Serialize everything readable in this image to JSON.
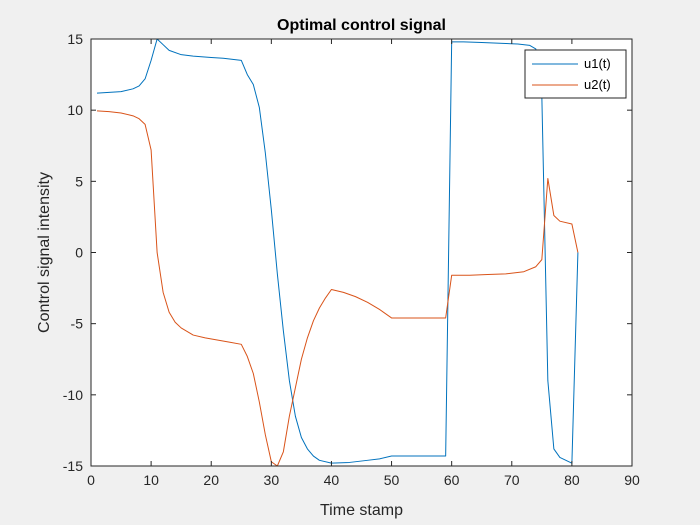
{
  "chart_data": {
    "type": "line",
    "title": "Optimal control signal",
    "xlabel": "Time stamp",
    "ylabel": "Control signal intensity",
    "xlim": [
      0,
      90
    ],
    "ylim": [
      -15,
      15
    ],
    "xticks": [
      0,
      10,
      20,
      30,
      40,
      50,
      60,
      70,
      80,
      90
    ],
    "yticks": [
      -15,
      -10,
      -5,
      0,
      5,
      10,
      15
    ],
    "grid": false,
    "legend_position": "top-right",
    "colors": {
      "u1": "#0072BD",
      "u2": "#D95319"
    },
    "series": [
      {
        "name": "u1(t)",
        "color": "#0072BD",
        "points": [
          [
            1,
            11.2
          ],
          [
            3,
            11.25
          ],
          [
            5,
            11.3
          ],
          [
            7,
            11.5
          ],
          [
            8,
            11.7
          ],
          [
            9,
            12.2
          ],
          [
            10,
            13.5
          ],
          [
            11,
            15.0
          ],
          [
            12,
            14.6
          ],
          [
            13,
            14.2
          ],
          [
            15,
            13.9
          ],
          [
            17,
            13.8
          ],
          [
            20,
            13.7
          ],
          [
            22,
            13.65
          ],
          [
            25,
            13.5
          ],
          [
            26,
            12.5
          ],
          [
            27,
            11.8
          ],
          [
            28,
            10.2
          ],
          [
            29,
            7.0
          ],
          [
            30,
            3.0
          ],
          [
            31,
            -1.5
          ],
          [
            32,
            -5.5
          ],
          [
            33,
            -9.0
          ],
          [
            34,
            -11.5
          ],
          [
            35,
            -13.0
          ],
          [
            36,
            -13.8
          ],
          [
            37,
            -14.3
          ],
          [
            38,
            -14.6
          ],
          [
            40,
            -14.8
          ],
          [
            43,
            -14.75
          ],
          [
            46,
            -14.6
          ],
          [
            48,
            -14.5
          ],
          [
            50,
            -14.3
          ],
          [
            53,
            -14.3
          ],
          [
            56,
            -14.3
          ],
          [
            59,
            -14.3
          ],
          [
            60,
            14.8
          ],
          [
            62,
            14.8
          ],
          [
            65,
            14.75
          ],
          [
            68,
            14.7
          ],
          [
            71,
            14.65
          ],
          [
            73,
            14.55
          ],
          [
            74,
            14.3
          ],
          [
            75,
            11.0
          ],
          [
            76,
            -9.0
          ],
          [
            77,
            -13.8
          ],
          [
            78,
            -14.4
          ],
          [
            79,
            -14.6
          ],
          [
            80,
            -14.8
          ],
          [
            81,
            0.0
          ]
        ]
      },
      {
        "name": "u2(t)",
        "color": "#D95319",
        "points": [
          [
            1,
            9.95
          ],
          [
            3,
            9.9
          ],
          [
            5,
            9.8
          ],
          [
            7,
            9.6
          ],
          [
            8,
            9.4
          ],
          [
            9,
            9.0
          ],
          [
            10,
            7.2
          ],
          [
            11,
            0.0
          ],
          [
            12,
            -2.8
          ],
          [
            13,
            -4.2
          ],
          [
            14,
            -4.9
          ],
          [
            15,
            -5.3
          ],
          [
            17,
            -5.8
          ],
          [
            19,
            -6.0
          ],
          [
            21,
            -6.15
          ],
          [
            23,
            -6.3
          ],
          [
            25,
            -6.45
          ],
          [
            26,
            -7.3
          ],
          [
            27,
            -8.5
          ],
          [
            28,
            -10.5
          ],
          [
            29,
            -12.8
          ],
          [
            30,
            -14.7
          ],
          [
            31,
            -15.0
          ],
          [
            32,
            -14.0
          ],
          [
            33,
            -11.5
          ],
          [
            34,
            -9.5
          ],
          [
            35,
            -7.5
          ],
          [
            36,
            -6.0
          ],
          [
            37,
            -4.8
          ],
          [
            38,
            -3.9
          ],
          [
            39,
            -3.2
          ],
          [
            40,
            -2.6
          ],
          [
            42,
            -2.8
          ],
          [
            44,
            -3.1
          ],
          [
            46,
            -3.5
          ],
          [
            48,
            -4.0
          ],
          [
            50,
            -4.6
          ],
          [
            53,
            -4.6
          ],
          [
            56,
            -4.6
          ],
          [
            59,
            -4.6
          ],
          [
            60,
            -1.6
          ],
          [
            63,
            -1.6
          ],
          [
            66,
            -1.55
          ],
          [
            69,
            -1.5
          ],
          [
            72,
            -1.35
          ],
          [
            74,
            -1.0
          ],
          [
            75,
            -0.5
          ],
          [
            76,
            5.2
          ],
          [
            77,
            2.6
          ],
          [
            78,
            2.2
          ],
          [
            80,
            2.0
          ],
          [
            81,
            0.0
          ]
        ]
      }
    ]
  }
}
